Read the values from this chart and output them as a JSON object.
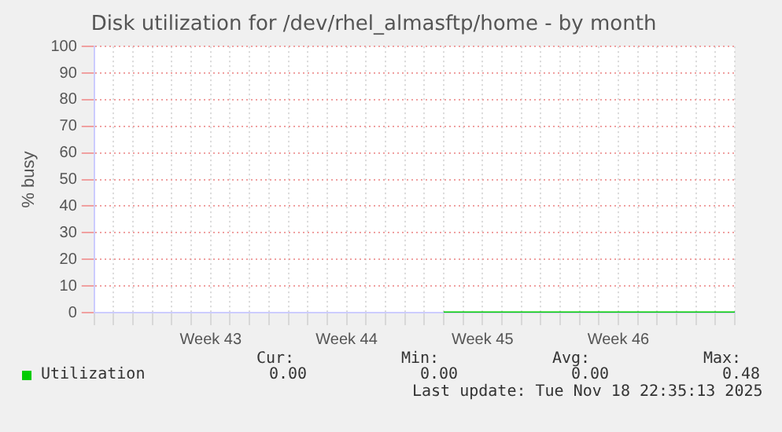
{
  "chart_data": {
    "type": "line",
    "title": "Disk utilization for /dev/rhel_almasftp/home - by month",
    "ylabel": "% busy",
    "categories": [
      null,
      null,
      null,
      null,
      null,
      null,
      "Week 43",
      null,
      null,
      null,
      null,
      null,
      null,
      "Week 44",
      null,
      null,
      null,
      null,
      null,
      null,
      "Week 45",
      null,
      null,
      null,
      null,
      null,
      null,
      "Week 46",
      null,
      null,
      null,
      null,
      null,
      null
    ],
    "series": [
      {
        "name": "Utilization",
        "color": "#00cc00",
        "values": [
          null,
          null,
          null,
          null,
          null,
          null,
          null,
          null,
          null,
          null,
          null,
          null,
          null,
          null,
          null,
          null,
          null,
          null,
          0,
          0,
          0,
          0,
          0,
          0,
          0,
          0,
          0,
          0,
          0,
          0,
          0,
          0,
          0,
          0
        ]
      }
    ],
    "ylim": [
      0,
      100
    ],
    "yticks": [
      0,
      10,
      20,
      30,
      40,
      50,
      60,
      70,
      80,
      90,
      100
    ],
    "grid": true,
    "legend": "bottom",
    "marker": "none",
    "annotations": [
      "Cur:",
      "Min:",
      "Avg:",
      "Max:",
      "0.00",
      "0.00",
      "0.00",
      "0.48",
      "Last update: Tue Nov 18 22:35:13 2025"
    ]
  }
}
